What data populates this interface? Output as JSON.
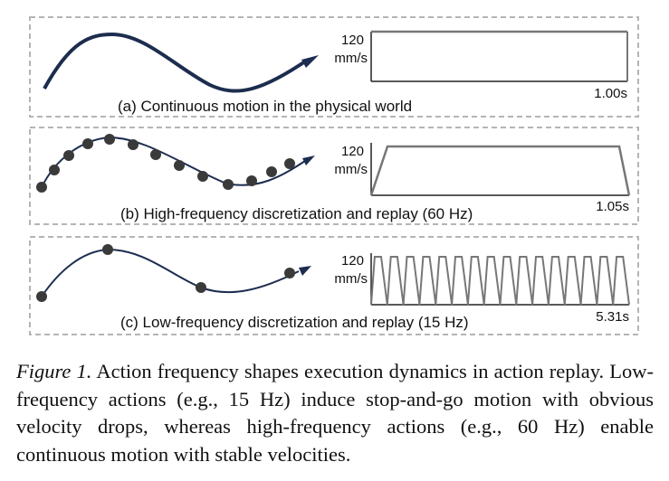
{
  "panels": [
    {
      "label": "(a) Continuous motion in the physical world",
      "y_tick": "120",
      "y_unit": "mm/s",
      "x_end": "1.00s"
    },
    {
      "label": "(b) High-frequency discretization and replay (60 Hz)",
      "y_tick": "120",
      "y_unit": "mm/s",
      "x_end": "1.05s"
    },
    {
      "label": "(c) Low-frequency discretization and replay (15 Hz)",
      "y_tick": "120",
      "y_unit": "mm/s",
      "x_end": "5.31s"
    }
  ],
  "caption": {
    "figure_label": "Figure 1.",
    "text": "Action frequency shapes execution dynamics in action replay. Low-frequency actions (e.g., 15 Hz) induce stop-and-go motion with obvious velocity drops, whereas high-frequency actions (e.g., 60 Hz) enable continuous motion with stable velocities."
  },
  "colors": {
    "curve": "#1c2d4f",
    "dot": "#3a3a3a",
    "velocity": "#777777",
    "border": "#b5b5b5"
  }
}
